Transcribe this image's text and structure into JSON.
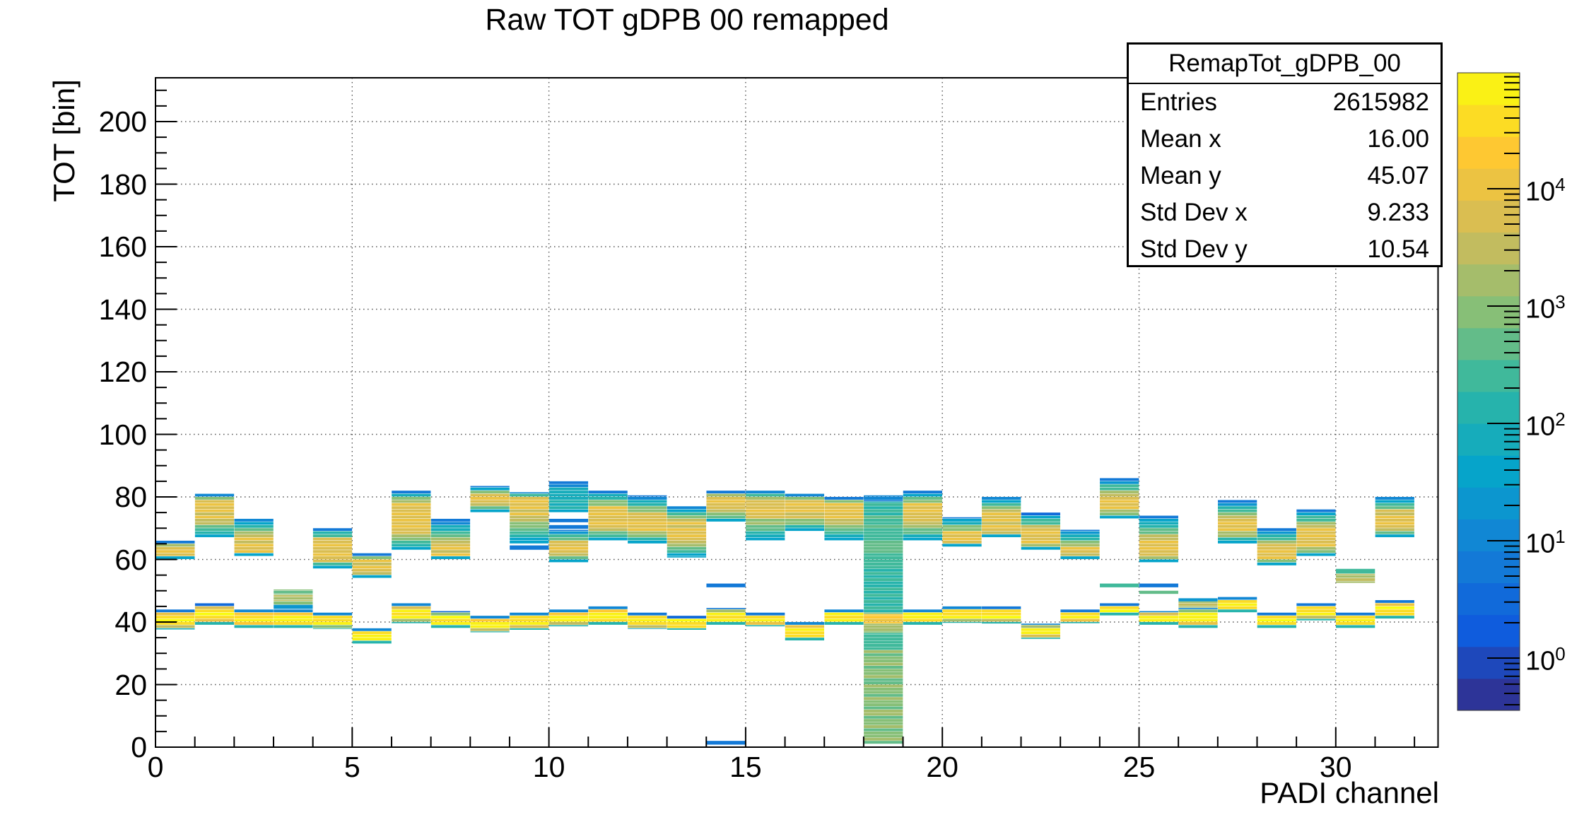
{
  "title": "Raw TOT gDPB 00 remapped",
  "stats": {
    "name": "RemapTot_gDPB_00",
    "rows": [
      {
        "label": "Entries",
        "value": "2615982"
      },
      {
        "label": "Mean x",
        "value": "16.00"
      },
      {
        "label": "Mean y",
        "value": "45.07"
      },
      {
        "label": "Std Dev x",
        "value": "9.233"
      },
      {
        "label": "Std Dev y",
        "value": "10.54"
      }
    ]
  },
  "chart_data": {
    "type": "heatmap",
    "title": "Raw TOT gDPB 00 remapped",
    "xlabel": "PADI channel",
    "ylabel": "TOT [bin]",
    "xlim": [
      0,
      32.6
    ],
    "ylim": [
      0,
      214
    ],
    "x_major_ticks": [
      0,
      5,
      10,
      15,
      20,
      25,
      30
    ],
    "x_minor_step": 1,
    "y_major_ticks": [
      0,
      20,
      40,
      60,
      80,
      100,
      120,
      140,
      160,
      180,
      200
    ],
    "y_minor_step": 5,
    "grid": true,
    "zscale": "log",
    "z_tick_labels": [
      "10^0",
      "10^1",
      "10^2",
      "10^3",
      "10^4"
    ],
    "z_range_log10": [
      -0.45,
      5.0
    ],
    "palette_anchors": [
      "#352a87",
      "#0f5cdd",
      "#1480d6",
      "#06a4ca",
      "#2eb7a4",
      "#87bf77",
      "#d1bb59",
      "#fec832",
      "#f9fb0e"
    ],
    "palette_bands": 20,
    "legend_position": "right-colorbar",
    "value_units": "counts (log10 level per strip)",
    "channels": [
      {
        "ch": 0,
        "upper": [
          60,
          66
        ],
        "upper_peak": [
          61,
          64
        ],
        "lower": [
          37.5,
          44
        ]
      },
      {
        "ch": 1,
        "upper": [
          67,
          81
        ],
        "upper_peak": [
          73,
          79
        ],
        "lower": [
          39,
          46
        ]
      },
      {
        "ch": 2,
        "upper": [
          61,
          73
        ],
        "upper_peak": [
          62,
          67
        ],
        "lower": [
          38,
          44
        ]
      },
      {
        "ch": 3,
        "upper": null,
        "upper_peak": null,
        "lower": [
          38,
          44
        ],
        "extras": [
          [
            48.6,
            50.4,
            2.8
          ],
          [
            46.6,
            48.6,
            3.4
          ],
          [
            45.5,
            46.6,
            2.9
          ],
          [
            44.1,
            45.5,
            1.2
          ]
        ]
      },
      {
        "ch": 4,
        "upper": [
          57,
          70
        ],
        "upper_peak": [
          60,
          66
        ],
        "lower": [
          37.7,
          43
        ]
      },
      {
        "ch": 5,
        "upper": [
          54,
          62
        ],
        "upper_peak": [
          56,
          60
        ],
        "lower": [
          33,
          38
        ]
      },
      {
        "ch": 6,
        "upper": [
          63,
          82
        ],
        "upper_peak": [
          69,
          78
        ],
        "lower": [
          39.5,
          46
        ]
      },
      {
        "ch": 7,
        "upper": [
          60,
          73
        ],
        "upper_peak": [
          61.5,
          64.5
        ],
        "lower": [
          38,
          43.5
        ]
      },
      {
        "ch": 8,
        "upper": [
          75,
          83.5
        ],
        "upper_peak": [
          78,
          80.5
        ],
        "lower": [
          36.6,
          42
        ]
      },
      {
        "ch": 9,
        "upper": [
          65,
          81.5
        ],
        "upper_peak": [
          74.5,
          79.5
        ],
        "lower": [
          37.4,
          43
        ],
        "extras": [
          [
            63,
            64.5,
            0.8
          ]
        ]
      },
      {
        "ch": 10,
        "upper": [
          59,
          69.5
        ],
        "upper_peak": [
          61.9,
          64.9
        ],
        "lower": [
          38.5,
          44
        ],
        "extras": [
          [
            83,
            85,
            0.8
          ],
          [
            75,
            83,
            1.9
          ],
          [
            71.8,
            73,
            0.7
          ],
          [
            69.7,
            71,
            0.9
          ]
        ]
      },
      {
        "ch": 11,
        "upper": [
          66,
          82
        ],
        "upper_peak": [
          70.5,
          76.5
        ],
        "lower": [
          39,
          45
        ]
      },
      {
        "ch": 12,
        "upper": [
          65,
          80.5
        ],
        "upper_peak": [
          69.5,
          74
        ],
        "lower": [
          37.7,
          43
        ]
      },
      {
        "ch": 13,
        "upper": [
          60.5,
          77
        ],
        "upper_peak": [
          66.5,
          72
        ],
        "lower": [
          37.4,
          42
        ]
      },
      {
        "ch": 14,
        "upper": [
          72,
          82
        ],
        "upper_peak": [
          76,
          80
        ],
        "lower": [
          39,
          44.5
        ],
        "extras": [
          [
            51,
            52.3,
            0.7
          ],
          [
            0.7,
            2,
            0.7
          ]
        ]
      },
      {
        "ch": 15,
        "upper": [
          66,
          82
        ],
        "upper_peak": [
          74.5,
          79
        ],
        "lower": [
          38.5,
          43
        ]
      },
      {
        "ch": 16,
        "upper": [
          69,
          81
        ],
        "upper_peak": [
          74,
          79
        ],
        "lower": [
          34,
          40
        ]
      },
      {
        "ch": 17,
        "upper": [
          66,
          80
        ],
        "upper_peak": [
          73,
          78
        ],
        "lower": [
          39,
          44
        ]
      },
      {
        "ch": 18,
        "upper": null,
        "upper_peak": null,
        "lower": null
      },
      {
        "ch": 19,
        "upper": [
          66,
          82
        ],
        "upper_peak": [
          72.5,
          77.5
        ],
        "lower": [
          39,
          44
        ]
      },
      {
        "ch": 20,
        "upper": [
          64,
          73.5
        ],
        "upper_peak": [
          65.5,
          68.5
        ],
        "lower": [
          39.6,
          45
        ]
      },
      {
        "ch": 21,
        "upper": [
          67,
          80
        ],
        "upper_peak": [
          69,
          75
        ],
        "lower": [
          39.4,
          45
        ]
      },
      {
        "ch": 22,
        "upper": [
          63,
          75
        ],
        "upper_peak": [
          65,
          69.5
        ],
        "lower": [
          34.5,
          39.5
        ]
      },
      {
        "ch": 23,
        "upper": [
          60,
          69.5
        ],
        "upper_peak": [
          61.9,
          63.4
        ],
        "lower": [
          39.5,
          44
        ]
      },
      {
        "ch": 24,
        "upper": [
          73,
          86
        ],
        "upper_peak": [
          76,
          80
        ],
        "lower": [
          42,
          46
        ],
        "extras": [
          [
            51,
            52.3,
            2.3
          ]
        ]
      },
      {
        "ch": 25,
        "upper": [
          59,
          74
        ],
        "upper_peak": [
          61,
          66
        ],
        "lower": [
          39,
          43.5
        ],
        "extras": [
          [
            51,
            52.3,
            0.7
          ],
          [
            48.9,
            50,
            2.8
          ]
        ]
      },
      {
        "ch": 26,
        "upper": null,
        "upper_peak": null,
        "lower": [
          38,
          44.5
        ],
        "extras": [
          [
            44.5,
            46.6,
            3.3
          ],
          [
            46.5,
            47.6,
            1.2
          ]
        ]
      },
      {
        "ch": 27,
        "upper": [
          65,
          79
        ],
        "upper_peak": [
          69,
          72.5
        ],
        "lower": [
          43,
          48
        ]
      },
      {
        "ch": 28,
        "upper": [
          58,
          70
        ],
        "upper_peak": [
          60,
          64
        ],
        "lower": [
          38,
          43
        ]
      },
      {
        "ch": 29,
        "upper": [
          61,
          76
        ],
        "upper_peak": [
          64,
          70
        ],
        "lower": [
          40.4,
          46
        ]
      },
      {
        "ch": 30,
        "upper": null,
        "upper_peak": null,
        "lower": [
          38,
          43
        ],
        "extras": [
          [
            55.4,
            57,
            2.3
          ],
          [
            52.4,
            55.4,
            3.4
          ]
        ]
      },
      {
        "ch": 31,
        "upper": [
          67,
          80
        ],
        "upper_peak": [
          70,
          75
        ],
        "lower": [
          41,
          47
        ]
      }
    ],
    "stripe": {
      "ch": 18,
      "segments": [
        [
          78.5,
          80.5,
          1.0
        ],
        [
          74,
          78.5,
          2.2
        ],
        [
          70,
          74,
          2.5
        ],
        [
          66,
          70,
          2.4
        ],
        [
          62,
          66,
          2.7
        ],
        [
          58,
          62,
          2.4
        ],
        [
          43,
          58,
          2.25
        ],
        [
          42.5,
          43,
          3.0
        ],
        [
          39.5,
          42.5,
          4.2
        ],
        [
          36.5,
          39.5,
          3.2
        ],
        [
          31,
          36.5,
          2.4
        ],
        [
          1,
          31,
          2.9
        ]
      ],
      "alt_texture_below": 31
    }
  }
}
